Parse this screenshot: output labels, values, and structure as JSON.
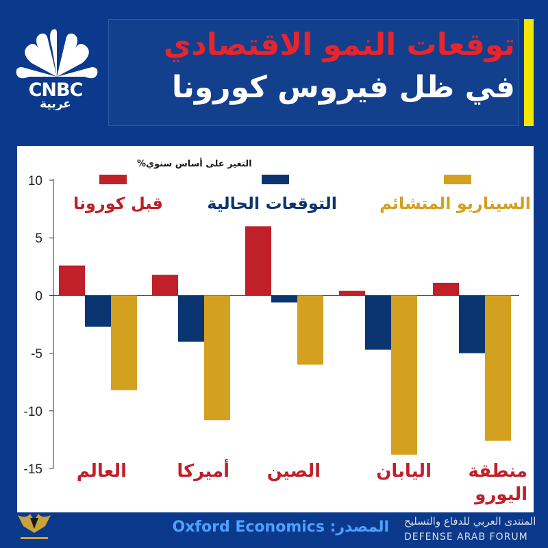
{
  "header": {
    "title_line1": "توقعات النمو الاقتصادي",
    "title_line2": "في ظل فيروس كورونا"
  },
  "logo": {
    "brand": "CNBC",
    "sub": "عربية"
  },
  "footer": {
    "source": "المصدر:  Oxford Economics",
    "watermark_ar": "المنتدى العربي للدفاع والتسليح",
    "watermark_en": "DEFENSE ARAB FORUM"
  },
  "colors": {
    "background": "#0b3a8c",
    "pre_covid": "#c0202a",
    "current": "#0a3570",
    "stress": "#d4a020",
    "title_red": "#e8242c",
    "accent_yellow": "#f2e600"
  },
  "chart_data": {
    "type": "bar",
    "ylabel": "التغير على أساس سنوي%",
    "ylim": [
      -15,
      10
    ],
    "yticks": [
      10,
      5,
      0,
      -5,
      -10,
      -15
    ],
    "categories": [
      "العالم",
      "أميركا",
      "الصين",
      "اليابان",
      "منطقة اليورو"
    ],
    "series": [
      {
        "name": "قبل كورونا",
        "color": "#c0202a",
        "values": [
          2.6,
          1.8,
          6.0,
          0.4,
          1.1
        ]
      },
      {
        "name": "التوقعات الحالية",
        "color": "#0a3570",
        "values": [
          -2.7,
          -4.0,
          -0.6,
          -4.7,
          -5.0
        ]
      },
      {
        "name": "السيناريو المتشائم",
        "color": "#d4a020",
        "values": [
          -8.2,
          -10.8,
          -6.0,
          -13.8,
          -12.6
        ]
      }
    ],
    "grid": false,
    "legend": "top"
  }
}
